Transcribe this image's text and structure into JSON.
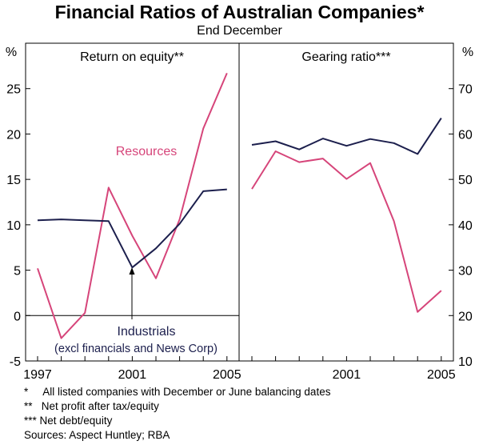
{
  "title": "Financial Ratios of Australian Companies*",
  "subtitle": "End December",
  "colors": {
    "resources": "#d6457a",
    "industrials": "#1c1f4d"
  },
  "chart_data": [
    {
      "type": "line",
      "title": "Return on equity**",
      "y_unit": "%",
      "ylim": [
        -5,
        30
      ],
      "y_ticks": [
        "-5",
        "0",
        "5",
        "10",
        "15",
        "20",
        "25"
      ],
      "x_ticks": [
        "1997",
        "2001",
        "2005"
      ],
      "x": [
        1997,
        1998,
        1999,
        2000,
        2001,
        2002,
        2003,
        2004,
        2005
      ],
      "series": [
        {
          "name": "Resources",
          "values": [
            5.2,
            -2.5,
            0.3,
            14.1,
            8.8,
            4.1,
            10.6,
            20.6,
            26.7
          ]
        },
        {
          "name": "Industrials",
          "values": [
            10.5,
            10.6,
            10.5,
            10.4,
            5.3,
            7.4,
            10.1,
            13.7,
            13.9
          ]
        }
      ],
      "annotations": [
        "Resources",
        "Industrials",
        "(excl financials and News Corp)"
      ]
    },
    {
      "type": "line",
      "title": "Gearing ratio***",
      "y_unit": "%",
      "ylim": [
        10,
        80
      ],
      "y_ticks": [
        "10",
        "20",
        "30",
        "40",
        "50",
        "60",
        "70"
      ],
      "x_ticks": [
        "2001",
        "2005"
      ],
      "x": [
        1997,
        1998,
        1999,
        2000,
        2001,
        2002,
        2003,
        2004,
        2005
      ],
      "series": [
        {
          "name": "Industrials",
          "values": [
            57.6,
            58.4,
            56.6,
            59.0,
            57.4,
            58.9,
            58.0,
            55.6,
            63.5
          ]
        },
        {
          "name": "Resources",
          "values": [
            47.9,
            56.2,
            53.8,
            54.6,
            50.1,
            53.6,
            40.8,
            20.8,
            25.5
          ]
        }
      ]
    }
  ],
  "notes": [
    "*     All listed companies with December or June balancing dates",
    "**   Net profit after tax/equity",
    "*** Net debt/equity",
    "Sources: Aspect Huntley; RBA"
  ]
}
